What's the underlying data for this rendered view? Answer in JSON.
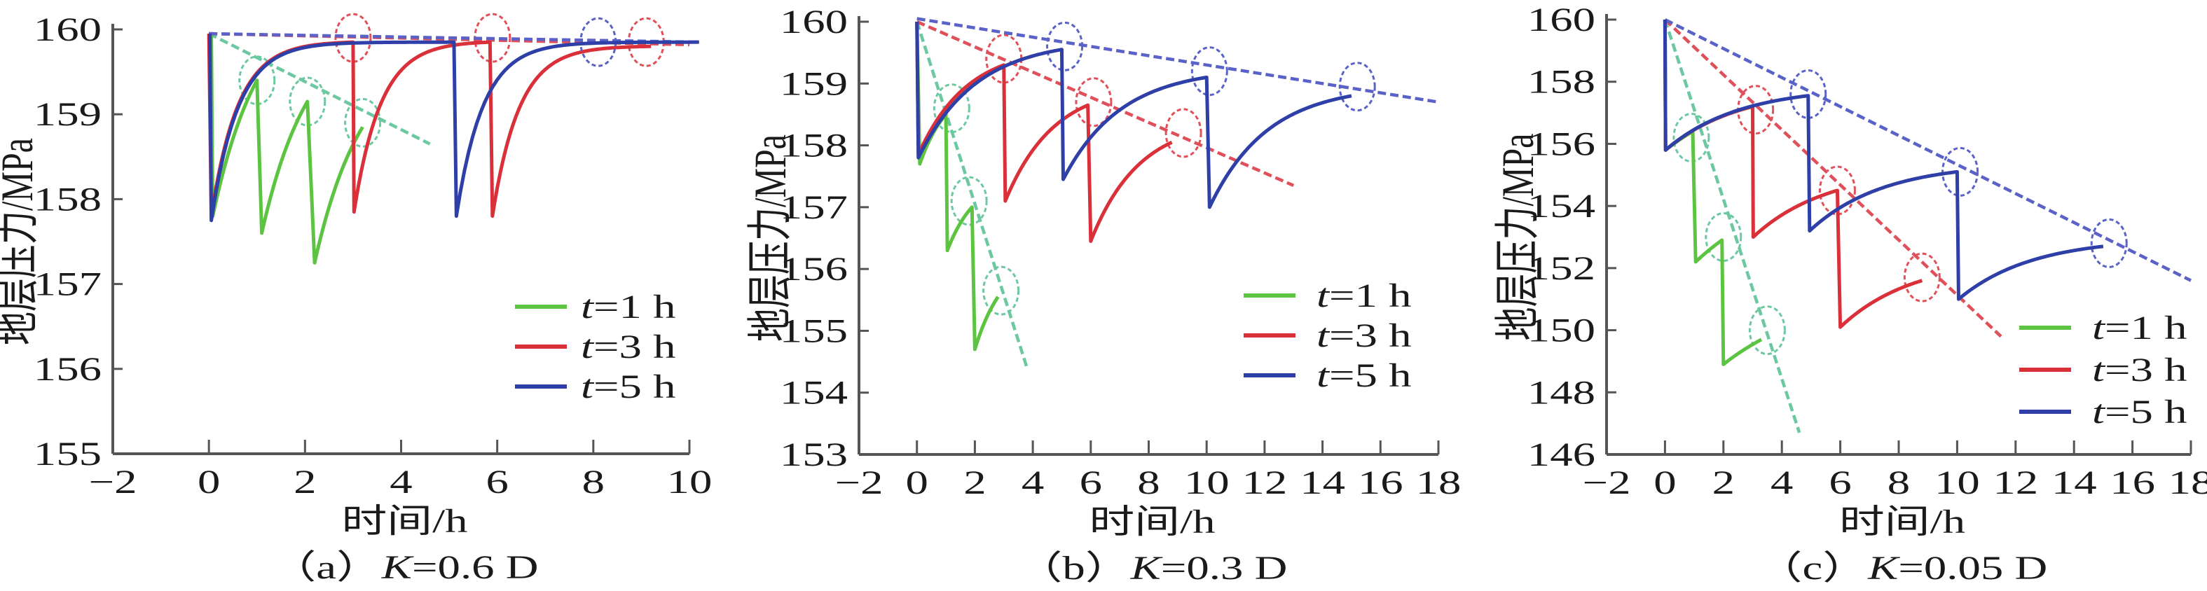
{
  "colors": {
    "t1": "#5cc440",
    "t3": "#d9303a",
    "t5": "#2f3fa8",
    "t1_trend": "#6cc8a0",
    "t3_trend": "#e0505a",
    "t5_trend": "#5a62c8",
    "axis": "#555555"
  },
  "chart_data": [
    {
      "type": "line",
      "caption": {
        "prefix": "（a）",
        "var": "K",
        "suffix": "=0.6 D"
      },
      "xlabel": "时间/h",
      "ylabel": "地层压力/MPa",
      "xlim": [
        -2,
        10
      ],
      "ylim": [
        155,
        160
      ],
      "xticks": [
        "−2",
        "0",
        "2",
        "4",
        "6",
        "8",
        "10"
      ],
      "xtick_values": [
        -2,
        0,
        2,
        4,
        6,
        8,
        10
      ],
      "yticks": [
        "155",
        "156",
        "157",
        "158",
        "159",
        "160"
      ],
      "ytick_values": [
        155,
        156,
        157,
        158,
        159,
        160
      ],
      "legend": {
        "placement": "center-right",
        "entries": [
          {
            "var": "t",
            "rest": "=1 h",
            "series": "t1"
          },
          {
            "var": "t",
            "rest": "=3 h",
            "series": "t3"
          },
          {
            "var": "t",
            "rest": "=5 h",
            "series": "t5"
          }
        ]
      },
      "series": [
        {
          "name": "t=1 h",
          "key": "t1",
          "start": 159.95,
          "recovery_rate": 1.0,
          "segments": [
            [
              0.05,
              0.08,
              157.8,
              1.0,
              159.4
            ],
            [
              1.0,
              1.1,
              157.6,
              2.05,
              159.15
            ],
            [
              2.05,
              2.2,
              157.25,
              3.2,
              158.85
            ]
          ],
          "trend": [
            [
              0,
              159.95
            ],
            [
              4.6,
              158.65
            ]
          ],
          "circles": [
            [
              1.0,
              159.4
            ],
            [
              2.05,
              159.15
            ],
            [
              3.2,
              158.9
            ]
          ]
        },
        {
          "name": "t=3 h",
          "key": "t3",
          "start": 159.95,
          "recovery_rate": 1.8,
          "segments": [
            [
              0,
              0.05,
              157.8,
              3.0,
              159.85
            ],
            [
              3.0,
              3.02,
              157.85,
              5.85,
              159.85
            ],
            [
              5.85,
              5.9,
              157.8,
              9.2,
              159.8
            ]
          ],
          "trend": [
            [
              0,
              159.95
            ],
            [
              10,
              159.82
            ]
          ],
          "circles": [
            [
              3.0,
              159.9
            ],
            [
              5.9,
              159.9
            ],
            [
              9.1,
              159.85
            ]
          ]
        },
        {
          "name": "t=5 h",
          "key": "t5",
          "start": 159.95,
          "recovery_rate": 1.8,
          "segments": [
            [
              0.02,
              0.05,
              157.75,
              5.1,
              159.85
            ],
            [
              5.1,
              5.15,
              157.8,
              10.2,
              159.85
            ]
          ],
          "trend": [
            [
              0,
              159.95
            ],
            [
              10.2,
              159.85
            ]
          ],
          "circles": [
            [
              8.1,
              159.85
            ]
          ]
        }
      ]
    },
    {
      "type": "line",
      "caption": {
        "prefix": "（b）",
        "var": "K",
        "suffix": "=0.3 D"
      },
      "xlabel": "时间/h",
      "ylabel": "地层压力/MPa",
      "xlim": [
        -2,
        18
      ],
      "ylim": [
        153,
        160
      ],
      "xticks": [
        "−2",
        "0",
        "2",
        "4",
        "6",
        "8",
        "10",
        "12",
        "14",
        "16",
        "18"
      ],
      "xtick_values": [
        -2,
        0,
        2,
        4,
        6,
        8,
        10,
        12,
        14,
        16,
        18
      ],
      "yticks": [
        "153",
        "154",
        "155",
        "156",
        "157",
        "158",
        "159",
        "160"
      ],
      "ytick_values": [
        153,
        154,
        155,
        156,
        157,
        158,
        159,
        160
      ],
      "legend": {
        "placement": "center-right",
        "entries": [
          {
            "var": "t",
            "rest": "=1 h",
            "series": "t1"
          },
          {
            "var": "t",
            "rest": "=3 h",
            "series": "t3"
          },
          {
            "var": "t",
            "rest": "=5 h",
            "series": "t5"
          }
        ]
      },
      "series": [
        {
          "name": "t=1 h",
          "key": "t1",
          "start": 160.0,
          "recovery_rate": 1.0,
          "segments": [
            [
              0,
              0.1,
              157.7,
              1.0,
              158.5
            ],
            [
              1.0,
              1.05,
              156.3,
              1.9,
              157.0
            ],
            [
              1.9,
              2.0,
              154.7,
              2.8,
              155.55
            ]
          ],
          "trend": [
            [
              0,
              160.0
            ],
            [
              3.8,
              154.4
            ]
          ],
          "circles": [
            [
              1.2,
              158.6
            ],
            [
              1.8,
              157.1
            ],
            [
              2.9,
              155.65
            ]
          ]
        },
        {
          "name": "t=3 h",
          "key": "t3",
          "start": 160.0,
          "recovery_rate": 0.6,
          "segments": [
            [
              0,
              0.05,
              157.85,
              3.0,
              159.3
            ],
            [
              3.0,
              3.05,
              157.1,
              5.9,
              158.65
            ],
            [
              5.9,
              6.0,
              156.45,
              8.8,
              158.05
            ]
          ],
          "trend": [
            [
              0,
              160.0
            ],
            [
              13,
              157.35
            ]
          ],
          "circles": [
            [
              3.0,
              159.4
            ],
            [
              6.1,
              158.7
            ],
            [
              9.2,
              158.2
            ]
          ]
        },
        {
          "name": "t=5 h",
          "key": "t5",
          "start": 160.0,
          "recovery_rate": 0.5,
          "segments": [
            [
              0,
              0.05,
              157.8,
              5.0,
              159.55
            ],
            [
              5.0,
              5.05,
              157.45,
              10.0,
              159.1
            ],
            [
              10.0,
              10.1,
              157.0,
              15.0,
              158.8
            ]
          ],
          "trend": [
            [
              0,
              160.05
            ],
            [
              18,
              158.7
            ]
          ],
          "circles": [
            [
              5.1,
              159.6
            ],
            [
              10.1,
              159.2
            ],
            [
              15.2,
              158.95
            ]
          ]
        }
      ]
    },
    {
      "type": "line",
      "caption": {
        "prefix": "（c）",
        "var": "K",
        "suffix": "=0.05 D"
      },
      "xlabel": "时间/h",
      "ylabel": "地层压力/MPa",
      "xlim": [
        -2,
        18
      ],
      "ylim": [
        146,
        160
      ],
      "xticks": [
        "−2",
        "0",
        "2",
        "4",
        "6",
        "8",
        "10",
        "12",
        "14",
        "16",
        "18"
      ],
      "xtick_values": [
        -2,
        0,
        2,
        4,
        6,
        8,
        10,
        12,
        14,
        16,
        18
      ],
      "yticks": [
        "146",
        "148",
        "150",
        "152",
        "154",
        "156",
        "158",
        "160"
      ],
      "ytick_values": [
        146,
        148,
        150,
        152,
        154,
        156,
        158,
        160
      ],
      "legend": {
        "placement": "lower-right",
        "entries": [
          {
            "var": "t",
            "rest": "=1 h",
            "series": "t1"
          },
          {
            "var": "t",
            "rest": "=3 h",
            "series": "t3"
          },
          {
            "var": "t",
            "rest": "=5 h",
            "series": "t5"
          }
        ]
      },
      "series": [
        {
          "name": "t=1 h",
          "key": "t1",
          "start": 160.0,
          "recovery_rate": 0.3,
          "segments": [
            [
              0,
              0.02,
              155.8,
              0.95,
              156.4
            ],
            [
              0.95,
              1.05,
              152.2,
              1.95,
              152.9
            ],
            [
              1.95,
              2.0,
              148.9,
              3.3,
              149.7
            ]
          ],
          "trend": [
            [
              0,
              160.0
            ],
            [
              4.6,
              146.7
            ]
          ],
          "circles": [
            [
              0.9,
              156.2
            ],
            [
              2.0,
              153.0
            ],
            [
              3.5,
              150.0
            ]
          ]
        },
        {
          "name": "t=3 h",
          "key": "t3",
          "start": 160.0,
          "recovery_rate": 0.4,
          "segments": [
            [
              0,
              0.02,
              155.8,
              3.0,
              157.2
            ],
            [
              3.0,
              3.02,
              153.0,
              5.9,
              154.5
            ],
            [
              5.9,
              6.0,
              150.1,
              8.8,
              151.6
            ]
          ],
          "trend": [
            [
              0,
              160.0
            ],
            [
              11.5,
              149.8
            ]
          ],
          "circles": [
            [
              3.1,
              157.1
            ],
            [
              5.9,
              154.5
            ],
            [
              8.8,
              151.7
            ]
          ]
        },
        {
          "name": "t=5 h",
          "key": "t5",
          "start": 160.0,
          "recovery_rate": 0.4,
          "segments": [
            [
              0,
              0.02,
              155.8,
              4.9,
              157.55
            ],
            [
              4.9,
              4.95,
              153.2,
              10.0,
              155.1
            ],
            [
              10.0,
              10.05,
              151.0,
              15.0,
              152.7
            ]
          ],
          "trend": [
            [
              0,
              160.0
            ],
            [
              18,
              151.6
            ]
          ],
          "circles": [
            [
              4.9,
              157.6
            ],
            [
              10.1,
              155.1
            ],
            [
              15.2,
              152.8
            ]
          ]
        }
      ]
    }
  ]
}
